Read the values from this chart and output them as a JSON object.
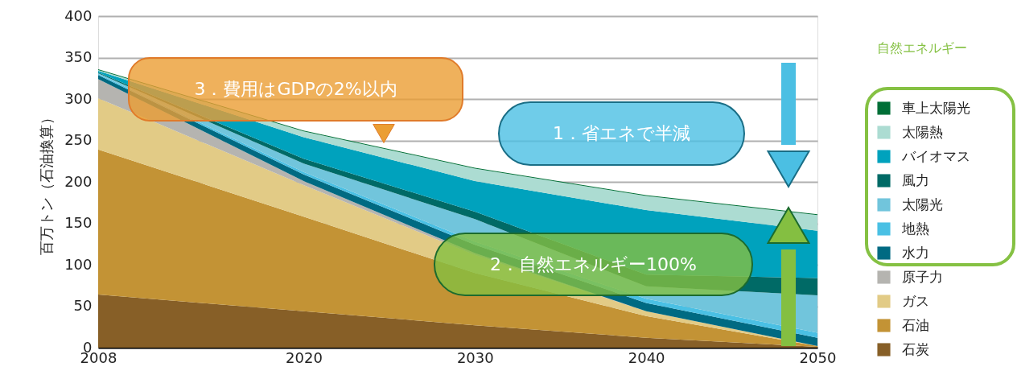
{
  "chart_data": {
    "type": "area",
    "stacked": true,
    "ylabel": "百万トン（石油換算）",
    "legend_title": "自然エネルギー",
    "x": [
      2008,
      2020,
      2030,
      2040,
      2050
    ],
    "xlim": [
      2008,
      2050
    ],
    "xticks": [
      2008,
      2020,
      2030,
      2040,
      2050
    ],
    "ylim": [
      0,
      400
    ],
    "yticks": [
      0,
      50,
      100,
      150,
      200,
      250,
      300,
      350,
      400
    ],
    "grid": "y",
    "legend": "right",
    "series": [
      {
        "name": "石炭",
        "color": "#875f27",
        "values": [
          64,
          44,
          27,
          12,
          1
        ]
      },
      {
        "name": "石油",
        "color": "#c39335",
        "values": [
          175,
          114,
          63,
          26,
          1
        ]
      },
      {
        "name": "ガス",
        "color": "#e2cb86",
        "values": [
          62,
          38,
          22,
          6,
          0
        ]
      },
      {
        "name": "原子力",
        "color": "#b5b4b0",
        "values": [
          23,
          5,
          2,
          0,
          0
        ]
      },
      {
        "name": "水力",
        "color": "#006a82",
        "values": [
          5,
          8,
          10,
          10,
          10
        ]
      },
      {
        "name": "地熱",
        "color": "#4ac0e4",
        "values": [
          1,
          3,
          4,
          5,
          6
        ]
      },
      {
        "name": "太陽光",
        "color": "#71c5dc",
        "values": [
          1,
          10,
          27,
          15,
          45
        ]
      },
      {
        "name": "風力",
        "color": "#006a66",
        "values": [
          1,
          6,
          9,
          14,
          21
        ]
      },
      {
        "name": "バイオマス",
        "color": "#00a2bd",
        "values": [
          2,
          26,
          37,
          78,
          57
        ]
      },
      {
        "name": "太陽熱",
        "color": "#acdcd2",
        "values": [
          1,
          7,
          15,
          17,
          19
        ]
      },
      {
        "name": "車上太陽光",
        "color": "#006f37",
        "values": [
          1,
          1,
          1,
          1,
          1
        ]
      }
    ],
    "annotations": [
      "3．費用はGDPの2%以内",
      "1．省エネで半減",
      "2．自然エネルギー100%"
    ]
  }
}
